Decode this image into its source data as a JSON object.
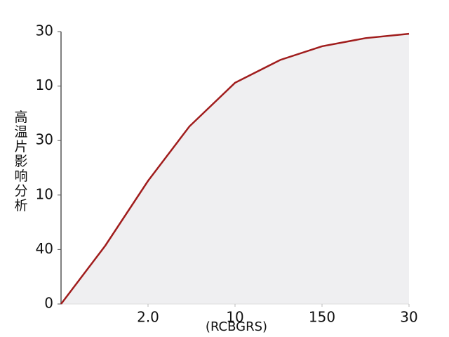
{
  "chart_data": {
    "type": "line",
    "xlabel": "(RCBGRS)",
    "ylabel": "高温片影响分析",
    "x": [
      0,
      25.4,
      50,
      73.8,
      100,
      126,
      150,
      175,
      200
    ],
    "series": [
      {
        "color": "#a01c1c",
        "values": [
          0,
          10.7,
          22.6,
          32.6,
          40.6,
          44.8,
          47.3,
          48.8,
          49.6
        ]
      }
    ],
    "area_color": "#efeff1",
    "xlim": [
      0,
      200
    ],
    "ylim": [
      0,
      50
    ],
    "xticks": [
      {
        "value": 50,
        "label": "2.0"
      },
      {
        "value": 100,
        "label": "10"
      },
      150,
      {
        "value": 200,
        "label": "30"
      }
    ],
    "yticks": [
      0,
      {
        "value": 10,
        "label": "40"
      },
      {
        "value": 20,
        "label": "10"
      },
      {
        "value": 30,
        "label": "30"
      },
      {
        "value": 40,
        "label": "10"
      },
      {
        "value": 50,
        "label": "30"
      }
    ]
  }
}
